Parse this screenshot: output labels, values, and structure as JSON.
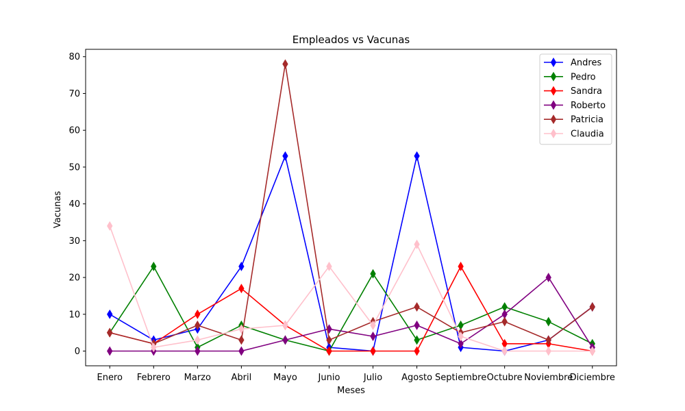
{
  "chart_data": {
    "type": "line",
    "title": "Empleados vs Vacunas",
    "xlabel": "Meses",
    "ylabel": "Vacunas",
    "categories": [
      "Enero",
      "Febrero",
      "Marzo",
      "Abril",
      "Mayo",
      "Junio",
      "Julio",
      "Agosto",
      "Septiembre",
      "Octubre",
      "Noviembre",
      "Diciembre"
    ],
    "ylim": [
      -4,
      82
    ],
    "yticks": [
      0,
      10,
      20,
      30,
      40,
      50,
      60,
      70,
      80
    ],
    "legend_position": "top-right",
    "marker": "thin-diamond",
    "series": [
      {
        "name": "Andres",
        "color": "#0000ff",
        "values": [
          10,
          3,
          6,
          23,
          53,
          1,
          0,
          53,
          1,
          0,
          3,
          12
        ]
      },
      {
        "name": "Pedro",
        "color": "#008000",
        "values": [
          5,
          23,
          1,
          7,
          3,
          0,
          21,
          3,
          7,
          12,
          8,
          2
        ]
      },
      {
        "name": "Sandra",
        "color": "#ff0000",
        "values": [
          5,
          2,
          10,
          17,
          7,
          0,
          0,
          0,
          23,
          2,
          2,
          0
        ]
      },
      {
        "name": "Roberto",
        "color": "#800080",
        "values": [
          0,
          0,
          0,
          0,
          3,
          6,
          4,
          7,
          2,
          10,
          20,
          1
        ]
      },
      {
        "name": "Patricia",
        "color": "#a52a2a",
        "values": [
          5,
          2,
          7,
          3,
          78,
          3,
          8,
          12,
          5,
          8,
          3,
          12
        ]
      },
      {
        "name": "Claudia",
        "color": "#ffc0cb",
        "values": [
          34,
          1,
          3,
          6,
          7,
          23,
          7,
          29,
          4,
          0,
          0,
          0
        ]
      }
    ]
  }
}
